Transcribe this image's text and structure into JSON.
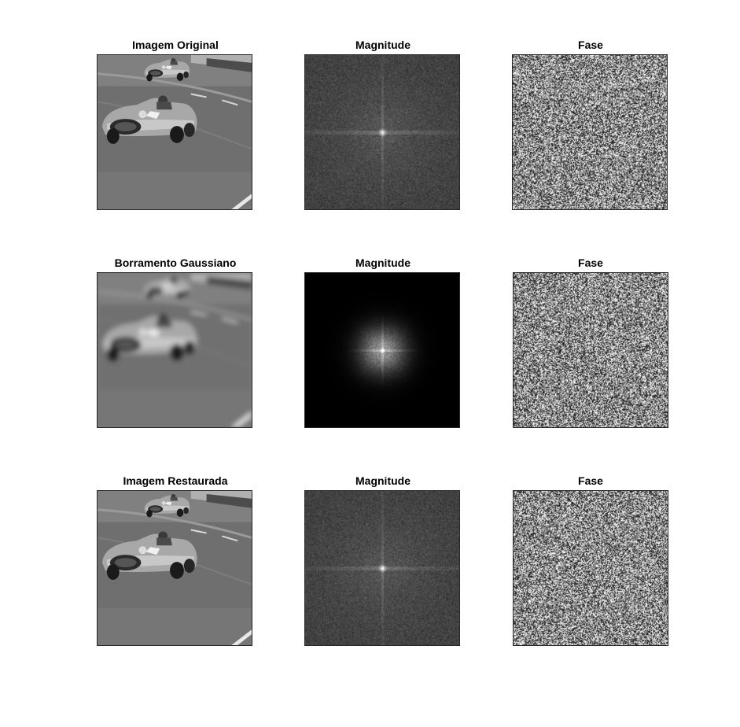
{
  "figure": {
    "rows": [
      {
        "panels": [
          {
            "title": "Imagem Original",
            "kind": "photo-sharp",
            "icon": "race-car-photo-icon"
          },
          {
            "title": "Magnitude",
            "kind": "spectrum-full",
            "icon": "fourier-magnitude-icon"
          },
          {
            "title": "Fase",
            "kind": "phase-noise",
            "icon": "fourier-phase-icon"
          }
        ]
      },
      {
        "panels": [
          {
            "title": "Borramento Gaussiano",
            "kind": "photo-blurred",
            "icon": "race-car-photo-icon"
          },
          {
            "title": "Magnitude",
            "kind": "spectrum-lowpass",
            "icon": "fourier-magnitude-icon"
          },
          {
            "title": "Fase",
            "kind": "phase-noise",
            "icon": "fourier-phase-icon"
          }
        ]
      },
      {
        "panels": [
          {
            "title": "Imagem Restaurada",
            "kind": "photo-sharp",
            "icon": "race-car-photo-icon"
          },
          {
            "title": "Magnitude",
            "kind": "spectrum-full",
            "icon": "fourier-magnitude-icon"
          },
          {
            "title": "Fase",
            "kind": "phase-noise",
            "icon": "fourier-phase-icon"
          }
        ]
      }
    ]
  }
}
